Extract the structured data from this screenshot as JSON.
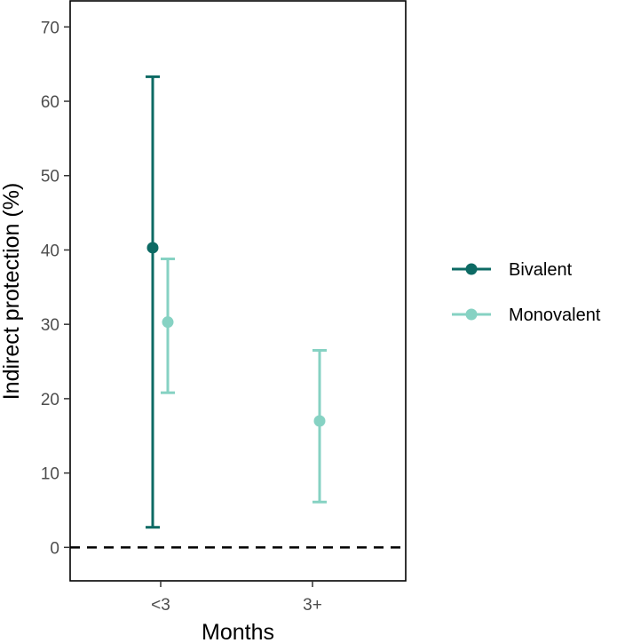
{
  "chart_data": {
    "type": "scatter",
    "subtype": "point-with-error-bars",
    "title": "",
    "xlabel": "Months",
    "ylabel": "Indirect protection (%)",
    "categories": [
      "<3",
      "3+"
    ],
    "ylim": [
      -4.5,
      73.5
    ],
    "yticks": [
      0,
      10,
      20,
      30,
      40,
      50,
      60,
      70
    ],
    "reference_line": {
      "y": 0,
      "style": "dashed",
      "color": "#000000"
    },
    "grid": false,
    "legend_position": "right",
    "series": [
      {
        "name": "Bivalent",
        "color": "#0d6a64",
        "points": [
          {
            "category": "<3",
            "y": 40.3,
            "lower": 2.7,
            "upper": 63.3
          }
        ]
      },
      {
        "name": "Monovalent",
        "color": "#86d2c3",
        "points": [
          {
            "category": "<3",
            "y": 30.3,
            "lower": 20.8,
            "upper": 38.8
          },
          {
            "category": "3+",
            "y": 17.0,
            "lower": 6.1,
            "upper": 26.5
          }
        ]
      }
    ]
  }
}
